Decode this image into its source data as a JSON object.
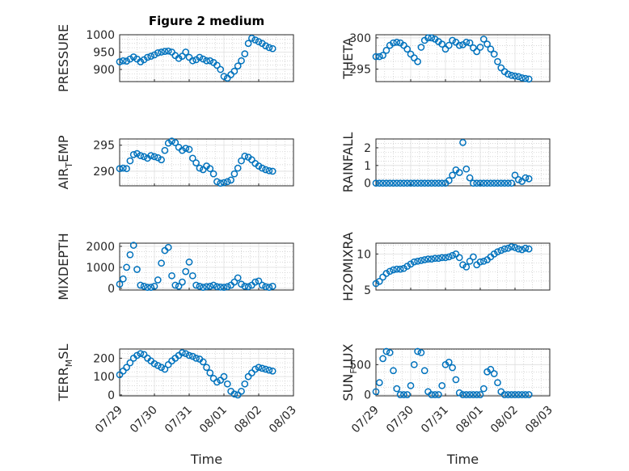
{
  "figure_title": "Figure 2 medium",
  "chart_data": [
    {
      "type": "scatter",
      "ylabel": "PRESSURE",
      "title": "Figure 2 medium",
      "xlim": [
        "07/29",
        "08/03"
      ],
      "ylim": [
        865,
        1000
      ],
      "yticks": [
        900,
        950,
        1000
      ],
      "xticks": [],
      "marker_color": "#0072BD",
      "grid": true,
      "minor_grid": true,
      "x": [
        0.0,
        0.1,
        0.2,
        0.3,
        0.4,
        0.5,
        0.6,
        0.7,
        0.8,
        0.9,
        1.0,
        1.1,
        1.2,
        1.3,
        1.4,
        1.5,
        1.6,
        1.7,
        1.8,
        1.9,
        2.0,
        2.1,
        2.2,
        2.3,
        2.4,
        2.5,
        2.6,
        2.7,
        2.8,
        2.9,
        3.0,
        3.1,
        3.2,
        3.3,
        3.4,
        3.5,
        3.6,
        3.7,
        3.8,
        3.9,
        4.0,
        4.1,
        4.2,
        4.3,
        4.4
      ],
      "y": [
        922,
        925,
        924,
        930,
        936,
        930,
        922,
        928,
        935,
        938,
        942,
        948,
        950,
        952,
        953,
        950,
        940,
        932,
        938,
        950,
        935,
        925,
        928,
        935,
        930,
        925,
        925,
        920,
        912,
        900,
        880,
        875,
        885,
        895,
        910,
        925,
        945,
        975,
        990,
        985,
        980,
        975,
        968,
        963,
        960
      ]
    },
    {
      "type": "scatter",
      "ylabel": "THETA",
      "xlim": [
        "07/29",
        "08/03"
      ],
      "ylim": [
        293,
        300.5
      ],
      "yticks": [
        295,
        300
      ],
      "xticks": [],
      "marker_color": "#0072BD",
      "grid": true,
      "minor_grid": true,
      "x": [
        0.0,
        0.1,
        0.2,
        0.3,
        0.4,
        0.5,
        0.6,
        0.7,
        0.8,
        0.9,
        1.0,
        1.1,
        1.2,
        1.3,
        1.4,
        1.5,
        1.6,
        1.7,
        1.8,
        1.9,
        2.0,
        2.1,
        2.2,
        2.3,
        2.4,
        2.5,
        2.6,
        2.7,
        2.8,
        2.9,
        3.0,
        3.1,
        3.2,
        3.3,
        3.4,
        3.5,
        3.6,
        3.7,
        3.8,
        3.9,
        4.0,
        4.1,
        4.2,
        4.3,
        4.4
      ],
      "y": [
        297,
        297,
        297.2,
        298,
        298.8,
        299.2,
        299.3,
        299.2,
        298.8,
        298.2,
        297.4,
        296.8,
        296.2,
        298.5,
        299.6,
        300,
        300,
        299.8,
        299.4,
        299,
        298.2,
        298.8,
        299.6,
        299.3,
        298.8,
        298.9,
        299.3,
        299.2,
        298.4,
        297.8,
        298.5,
        299.8,
        299,
        298.2,
        297.4,
        296.2,
        295.2,
        294.6,
        294.2,
        294,
        293.9,
        293.8,
        293.6,
        293.5,
        293.4
      ]
    },
    {
      "type": "scatter",
      "ylabel": "AIR_TEMP",
      "ylabel_main": "AIR",
      "ylabel_sub": "T",
      "ylabel_rest": "EMP",
      "xlim": [
        "07/29",
        "08/03"
      ],
      "ylim": [
        287.2,
        296.2
      ],
      "yticks": [
        290,
        295
      ],
      "xticks": [],
      "marker_color": "#0072BD",
      "grid": true,
      "minor_grid": true,
      "x": [
        0.0,
        0.1,
        0.2,
        0.3,
        0.4,
        0.5,
        0.6,
        0.7,
        0.8,
        0.9,
        1.0,
        1.1,
        1.2,
        1.3,
        1.4,
        1.5,
        1.6,
        1.7,
        1.8,
        1.9,
        2.0,
        2.1,
        2.2,
        2.3,
        2.4,
        2.5,
        2.6,
        2.7,
        2.8,
        2.9,
        3.0,
        3.1,
        3.2,
        3.3,
        3.4,
        3.5,
        3.6,
        3.7,
        3.8,
        3.9,
        4.0,
        4.1,
        4.2,
        4.3,
        4.4
      ],
      "y": [
        290.5,
        290.6,
        290.5,
        292,
        293.2,
        293.4,
        293,
        292.8,
        292.5,
        293,
        292.8,
        292.6,
        292.2,
        294,
        295.4,
        295.8,
        295.5,
        294.6,
        294,
        294.4,
        294.2,
        292.5,
        291.6,
        290.6,
        290.3,
        291,
        290.5,
        289.5,
        288,
        287.7,
        287.8,
        288,
        288.3,
        289.5,
        290.6,
        292,
        292.9,
        292.7,
        292.2,
        291.5,
        291,
        290.6,
        290.3,
        290.1,
        290
      ]
    },
    {
      "type": "scatter",
      "ylabel": "RAINFALL",
      "xlim": [
        "07/29",
        "08/03"
      ],
      "ylim": [
        -0.15,
        2.5
      ],
      "yticks": [
        0,
        1,
        2
      ],
      "xticks": [],
      "marker_color": "#0072BD",
      "grid": true,
      "minor_grid": true,
      "x": [
        0.0,
        0.1,
        0.2,
        0.3,
        0.4,
        0.5,
        0.6,
        0.7,
        0.8,
        0.9,
        1.0,
        1.1,
        1.2,
        1.3,
        1.4,
        1.5,
        1.6,
        1.7,
        1.8,
        1.9,
        2.0,
        2.1,
        2.2,
        2.3,
        2.4,
        2.5,
        2.6,
        2.7,
        2.8,
        2.9,
        3.0,
        3.1,
        3.2,
        3.3,
        3.4,
        3.5,
        3.6,
        3.7,
        3.8,
        3.9,
        4.0,
        4.1,
        4.2,
        4.3,
        4.4
      ],
      "y": [
        0,
        0,
        0,
        0,
        0,
        0,
        0,
        0,
        0,
        0,
        0,
        0,
        0,
        0,
        0,
        0,
        0,
        0,
        0,
        0,
        0,
        0.15,
        0.45,
        0.75,
        0.6,
        2.3,
        0.8,
        0.3,
        0,
        0,
        0,
        0,
        0,
        0,
        0,
        0,
        0,
        0,
        0,
        0,
        0.45,
        0.2,
        0.1,
        0.3,
        0.25
      ]
    },
    {
      "type": "scatter",
      "ylabel": "MIXDEPTH",
      "xlim": [
        "07/29",
        "08/03"
      ],
      "ylim": [
        -80,
        2150
      ],
      "yticks": [
        0,
        1000,
        2000
      ],
      "xticks": [],
      "marker_color": "#0072BD",
      "grid": true,
      "minor_grid": true,
      "x": [
        0.0,
        0.1,
        0.2,
        0.3,
        0.4,
        0.5,
        0.6,
        0.7,
        0.8,
        0.9,
        1.0,
        1.1,
        1.2,
        1.3,
        1.4,
        1.5,
        1.6,
        1.7,
        1.8,
        1.9,
        2.0,
        2.1,
        2.2,
        2.3,
        2.4,
        2.5,
        2.6,
        2.7,
        2.8,
        2.9,
        3.0,
        3.1,
        3.2,
        3.3,
        3.4,
        3.5,
        3.6,
        3.7,
        3.8,
        3.9,
        4.0,
        4.1,
        4.2,
        4.3,
        4.4
      ],
      "y": [
        200,
        450,
        1000,
        1600,
        2050,
        900,
        150,
        100,
        50,
        50,
        100,
        400,
        1200,
        1800,
        1950,
        600,
        150,
        100,
        300,
        800,
        1250,
        600,
        150,
        100,
        50,
        80,
        100,
        150,
        80,
        60,
        50,
        80,
        150,
        300,
        500,
        200,
        100,
        80,
        150,
        300,
        350,
        150,
        80,
        50,
        100
      ]
    },
    {
      "type": "scatter",
      "ylabel": "H2OMIXRA",
      "xlim": [
        "07/29",
        "08/03"
      ],
      "ylim": [
        5,
        11.5
      ],
      "yticks": [
        5,
        10
      ],
      "xticks": [],
      "marker_color": "#0072BD",
      "grid": true,
      "minor_grid": true,
      "x": [
        0.0,
        0.1,
        0.2,
        0.3,
        0.4,
        0.5,
        0.6,
        0.7,
        0.8,
        0.9,
        1.0,
        1.1,
        1.2,
        1.3,
        1.4,
        1.5,
        1.6,
        1.7,
        1.8,
        1.9,
        2.0,
        2.1,
        2.2,
        2.3,
        2.4,
        2.5,
        2.6,
        2.7,
        2.8,
        2.9,
        3.0,
        3.1,
        3.2,
        3.3,
        3.4,
        3.5,
        3.6,
        3.7,
        3.8,
        3.9,
        4.0,
        4.1,
        4.2,
        4.3,
        4.4
      ],
      "y": [
        5.9,
        6.2,
        6.8,
        7.3,
        7.6,
        7.8,
        7.9,
        7.9,
        8,
        8.3,
        8.6,
        8.9,
        9,
        9.1,
        9.2,
        9.3,
        9.3,
        9.4,
        9.4,
        9.5,
        9.5,
        9.6,
        9.8,
        10,
        9.5,
        8.5,
        8.2,
        9,
        9.6,
        8.5,
        8.9,
        9,
        9.2,
        9.6,
        10,
        10.3,
        10.5,
        10.7,
        10.8,
        11,
        10.9,
        10.7,
        10.6,
        10.8,
        10.7
      ]
    },
    {
      "type": "scatter",
      "ylabel": "TERR_MSL",
      "ylabel_main": "TERR",
      "ylabel_sub": "M",
      "ylabel_rest": "SL",
      "xlim": [
        "07/29",
        "08/03"
      ],
      "ylim": [
        -5,
        250
      ],
      "yticks": [
        0,
        100,
        200
      ],
      "xticks": [
        "07/29",
        "07/30",
        "07/31",
        "08/01",
        "08/02",
        "08/03"
      ],
      "xlabel": "Time",
      "marker_color": "#0072BD",
      "grid": true,
      "minor_grid": true,
      "x": [
        0.0,
        0.1,
        0.2,
        0.3,
        0.4,
        0.5,
        0.6,
        0.7,
        0.8,
        0.9,
        1.0,
        1.1,
        1.2,
        1.3,
        1.4,
        1.5,
        1.6,
        1.7,
        1.8,
        1.9,
        2.0,
        2.1,
        2.2,
        2.3,
        2.4,
        2.5,
        2.6,
        2.7,
        2.8,
        2.9,
        3.0,
        3.1,
        3.2,
        3.3,
        3.4,
        3.5,
        3.6,
        3.7,
        3.8,
        3.9,
        4.0,
        4.1,
        4.2,
        4.3,
        4.4
      ],
      "y": [
        110,
        130,
        150,
        175,
        200,
        215,
        225,
        220,
        200,
        185,
        170,
        160,
        150,
        140,
        165,
        185,
        200,
        215,
        230,
        225,
        215,
        210,
        200,
        195,
        180,
        150,
        120,
        90,
        70,
        80,
        100,
        60,
        20,
        5,
        0,
        20,
        60,
        100,
        120,
        140,
        150,
        145,
        140,
        135,
        130
      ]
    },
    {
      "type": "scatter",
      "ylabel": "SUN_FLUX",
      "ylabel_main": "SUN",
      "ylabel_sub": "F",
      "ylabel_rest": "LUX",
      "xlim": [
        "07/29",
        "08/03"
      ],
      "ylim": [
        -20,
        760
      ],
      "yticks": [
        0,
        500
      ],
      "xticks": [
        "07/29",
        "07/30",
        "07/31",
        "08/01",
        "08/02",
        "08/03"
      ],
      "xlabel": "Time",
      "marker_color": "#0072BD",
      "grid": true,
      "minor_grid": true,
      "x": [
        0.0,
        0.1,
        0.2,
        0.3,
        0.4,
        0.5,
        0.6,
        0.7,
        0.8,
        0.9,
        1.0,
        1.1,
        1.2,
        1.3,
        1.4,
        1.5,
        1.6,
        1.7,
        1.8,
        1.9,
        2.0,
        2.1,
        2.2,
        2.3,
        2.4,
        2.5,
        2.6,
        2.7,
        2.8,
        2.9,
        3.0,
        3.1,
        3.2,
        3.3,
        3.4,
        3.5,
        3.6,
        3.7,
        3.8,
        3.9,
        4.0,
        4.1,
        4.2,
        4.3,
        4.4
      ],
      "y": [
        50,
        200,
        600,
        720,
        700,
        400,
        100,
        0,
        0,
        0,
        150,
        500,
        720,
        700,
        400,
        50,
        0,
        0,
        0,
        150,
        500,
        540,
        450,
        250,
        30,
        0,
        0,
        0,
        0,
        0,
        0,
        100,
        380,
        420,
        350,
        200,
        50,
        0,
        0,
        0,
        0,
        0,
        0,
        0,
        0
      ]
    }
  ]
}
